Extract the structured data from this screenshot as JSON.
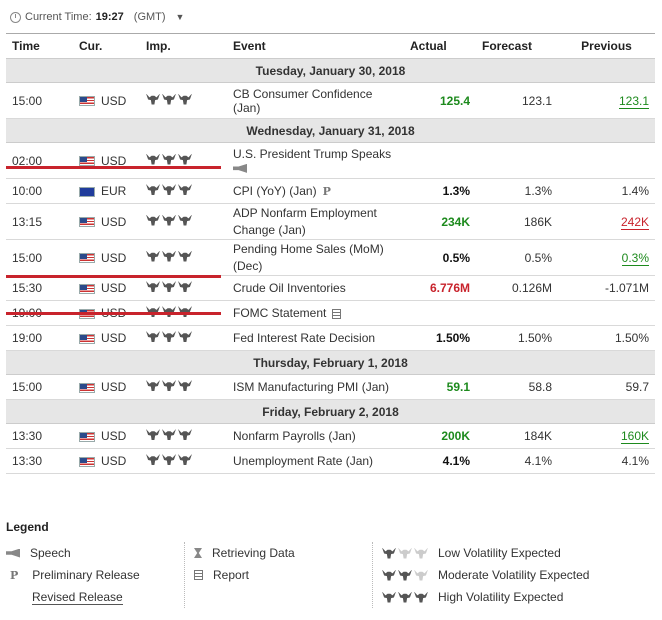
{
  "header": {
    "label": "Current Time:",
    "time": "19:27",
    "tz": "(GMT)"
  },
  "columns": {
    "time": "Time",
    "cur": "Cur.",
    "imp": "Imp.",
    "event": "Event",
    "actual": "Actual",
    "forecast": "Forecast",
    "previous": "Previous"
  },
  "days": [
    {
      "date": "Tuesday, January 30, 2018",
      "events": [
        {
          "time": "15:00",
          "cur": "USD",
          "event": "CB Consumer Confidence (Jan)",
          "actual": "125.4",
          "forecast": "123.1",
          "previous": "123.1"
        }
      ]
    },
    {
      "date": "Wednesday, January 31, 2018",
      "events": [
        {
          "time": "02:00",
          "cur": "USD",
          "event": "U.S. President Trump Speaks",
          "actual": "",
          "forecast": "",
          "previous": ""
        },
        {
          "time": "10:00",
          "cur": "EUR",
          "event": "CPI (YoY) (Jan)",
          "actual": "1.3%",
          "forecast": "1.3%",
          "previous": "1.4%"
        },
        {
          "time": "13:15",
          "cur": "USD",
          "event": "ADP Nonfarm Employment Change (Jan)",
          "actual": "234K",
          "forecast": "186K",
          "previous": "242K"
        },
        {
          "time": "15:00",
          "cur": "USD",
          "event": "Pending Home Sales (MoM) (Dec)",
          "actual": "0.5%",
          "forecast": "0.5%",
          "previous": "0.3%"
        },
        {
          "time": "15:30",
          "cur": "USD",
          "event": "Crude Oil Inventories",
          "actual": "6.776M",
          "forecast": "0.126M",
          "previous": "-1.071M"
        },
        {
          "time": "19:00",
          "cur": "USD",
          "event": "FOMC Statement",
          "actual": "",
          "forecast": "",
          "previous": ""
        },
        {
          "time": "19:00",
          "cur": "USD",
          "event": "Fed Interest Rate Decision",
          "actual": "1.50%",
          "forecast": "1.50%",
          "previous": "1.50%"
        }
      ]
    },
    {
      "date": "Thursday, February 1, 2018",
      "events": [
        {
          "time": "15:00",
          "cur": "USD",
          "event": "ISM Manufacturing PMI (Jan)",
          "actual": "59.1",
          "forecast": "58.8",
          "previous": "59.7"
        }
      ]
    },
    {
      "date": "Friday, February 2, 2018",
      "events": [
        {
          "time": "13:30",
          "cur": "USD",
          "event": "Nonfarm Payrolls (Jan)",
          "actual": "200K",
          "forecast": "184K",
          "previous": "160K"
        },
        {
          "time": "13:30",
          "cur": "USD",
          "event": "Unemployment Rate (Jan)",
          "actual": "4.1%",
          "forecast": "4.1%",
          "previous": "4.1%"
        }
      ]
    }
  ],
  "legend": {
    "title": "Legend",
    "speech": "Speech",
    "preliminary": "Preliminary Release",
    "revised": "Revised Release",
    "retrieving": "Retrieving Data",
    "report": "Report",
    "low": "Low Volatility Expected",
    "moderate": "Moderate Volatility Expected",
    "high": "High Volatility Expected"
  },
  "colors": {
    "positive": "#1d8a1d",
    "negative": "#c8232c",
    "strike": "#c8232c"
  }
}
